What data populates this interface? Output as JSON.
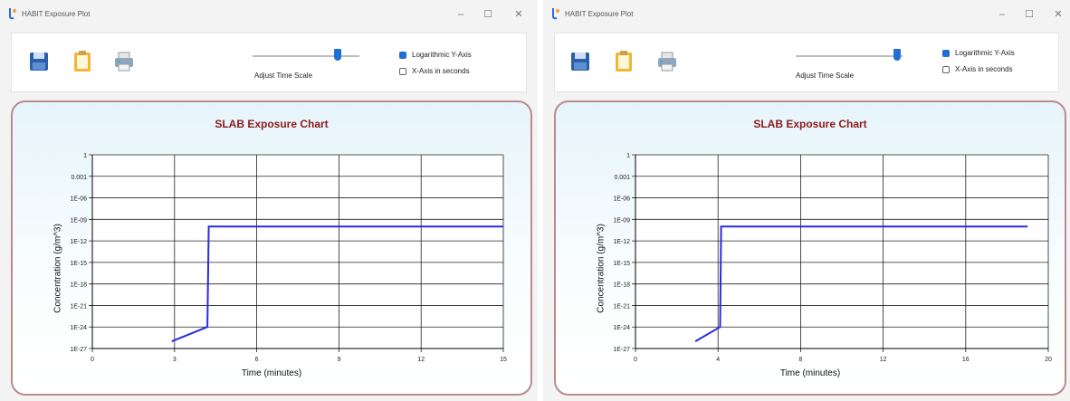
{
  "windows": [
    {
      "title": "HABIT Exposure Plot",
      "window_controls": {
        "minimize": "–",
        "maximize": "☐",
        "close": "✕"
      },
      "toolbar": {
        "save_icon": "save-icon",
        "clipboard_icon": "clipboard-icon",
        "print_icon": "print-icon",
        "slider_label": "Adjust Time Scale",
        "slider_value": 0.8,
        "log_y_label": "Logarithmic Y-Axis",
        "log_y_checked": true,
        "x_seconds_label": "X-Axis in seconds",
        "x_seconds_checked": false
      },
      "chart_data": {
        "type": "line",
        "title": "SLAB Exposure Chart",
        "xlabel": "Time (minutes)",
        "ylabel": "Concentration (g/m^3)",
        "x_ticks": [
          "0",
          "3",
          "6",
          "9",
          "12",
          "15"
        ],
        "y_ticks": [
          "1E-27",
          "1E-24",
          "1E-21",
          "1E-18",
          "1E-15",
          "1E-12",
          "1E-09",
          "1E-06",
          "0.001",
          "1"
        ],
        "xlim": [
          0,
          15
        ],
        "ylim_log10": [
          -27,
          0
        ],
        "y_scale": "log",
        "grid": true,
        "series_color": "#2a2ae8",
        "series": [
          {
            "x": [
              2.9,
              4.2,
              4.25,
              15
            ],
            "y": [
              1e-26,
              1e-24,
              1e-10,
              1e-10
            ]
          }
        ]
      }
    },
    {
      "title": "HABIT Exposure Plot",
      "window_controls": {
        "minimize": "–",
        "maximize": "☐",
        "close": "✕"
      },
      "toolbar": {
        "save_icon": "save-icon",
        "clipboard_icon": "clipboard-icon",
        "print_icon": "print-icon",
        "slider_label": "Adjust Time Scale",
        "slider_value": 0.95,
        "log_y_label": "Logarithmic Y-Axis",
        "log_y_checked": true,
        "x_seconds_label": "X-Axis in seconds",
        "x_seconds_checked": false
      },
      "chart_data": {
        "type": "line",
        "title": "SLAB Exposure Chart",
        "xlabel": "Time (minutes)",
        "ylabel": "Concentration (g/m^3)",
        "x_ticks": [
          "0",
          "4",
          "8",
          "12",
          "16",
          "20"
        ],
        "y_ticks": [
          "1E-27",
          "1E-24",
          "1E-21",
          "1E-18",
          "1E-15",
          "1E-12",
          "1E-09",
          "1E-06",
          "0.001",
          "1"
        ],
        "xlim": [
          0,
          20
        ],
        "ylim_log10": [
          -27,
          0
        ],
        "y_scale": "log",
        "grid": true,
        "series_color": "#2a2ae8",
        "series": [
          {
            "x": [
              2.9,
              4.1,
              4.15,
              19
            ],
            "y": [
              1e-26,
              1e-24,
              1e-10,
              1e-10
            ]
          }
        ]
      }
    }
  ]
}
